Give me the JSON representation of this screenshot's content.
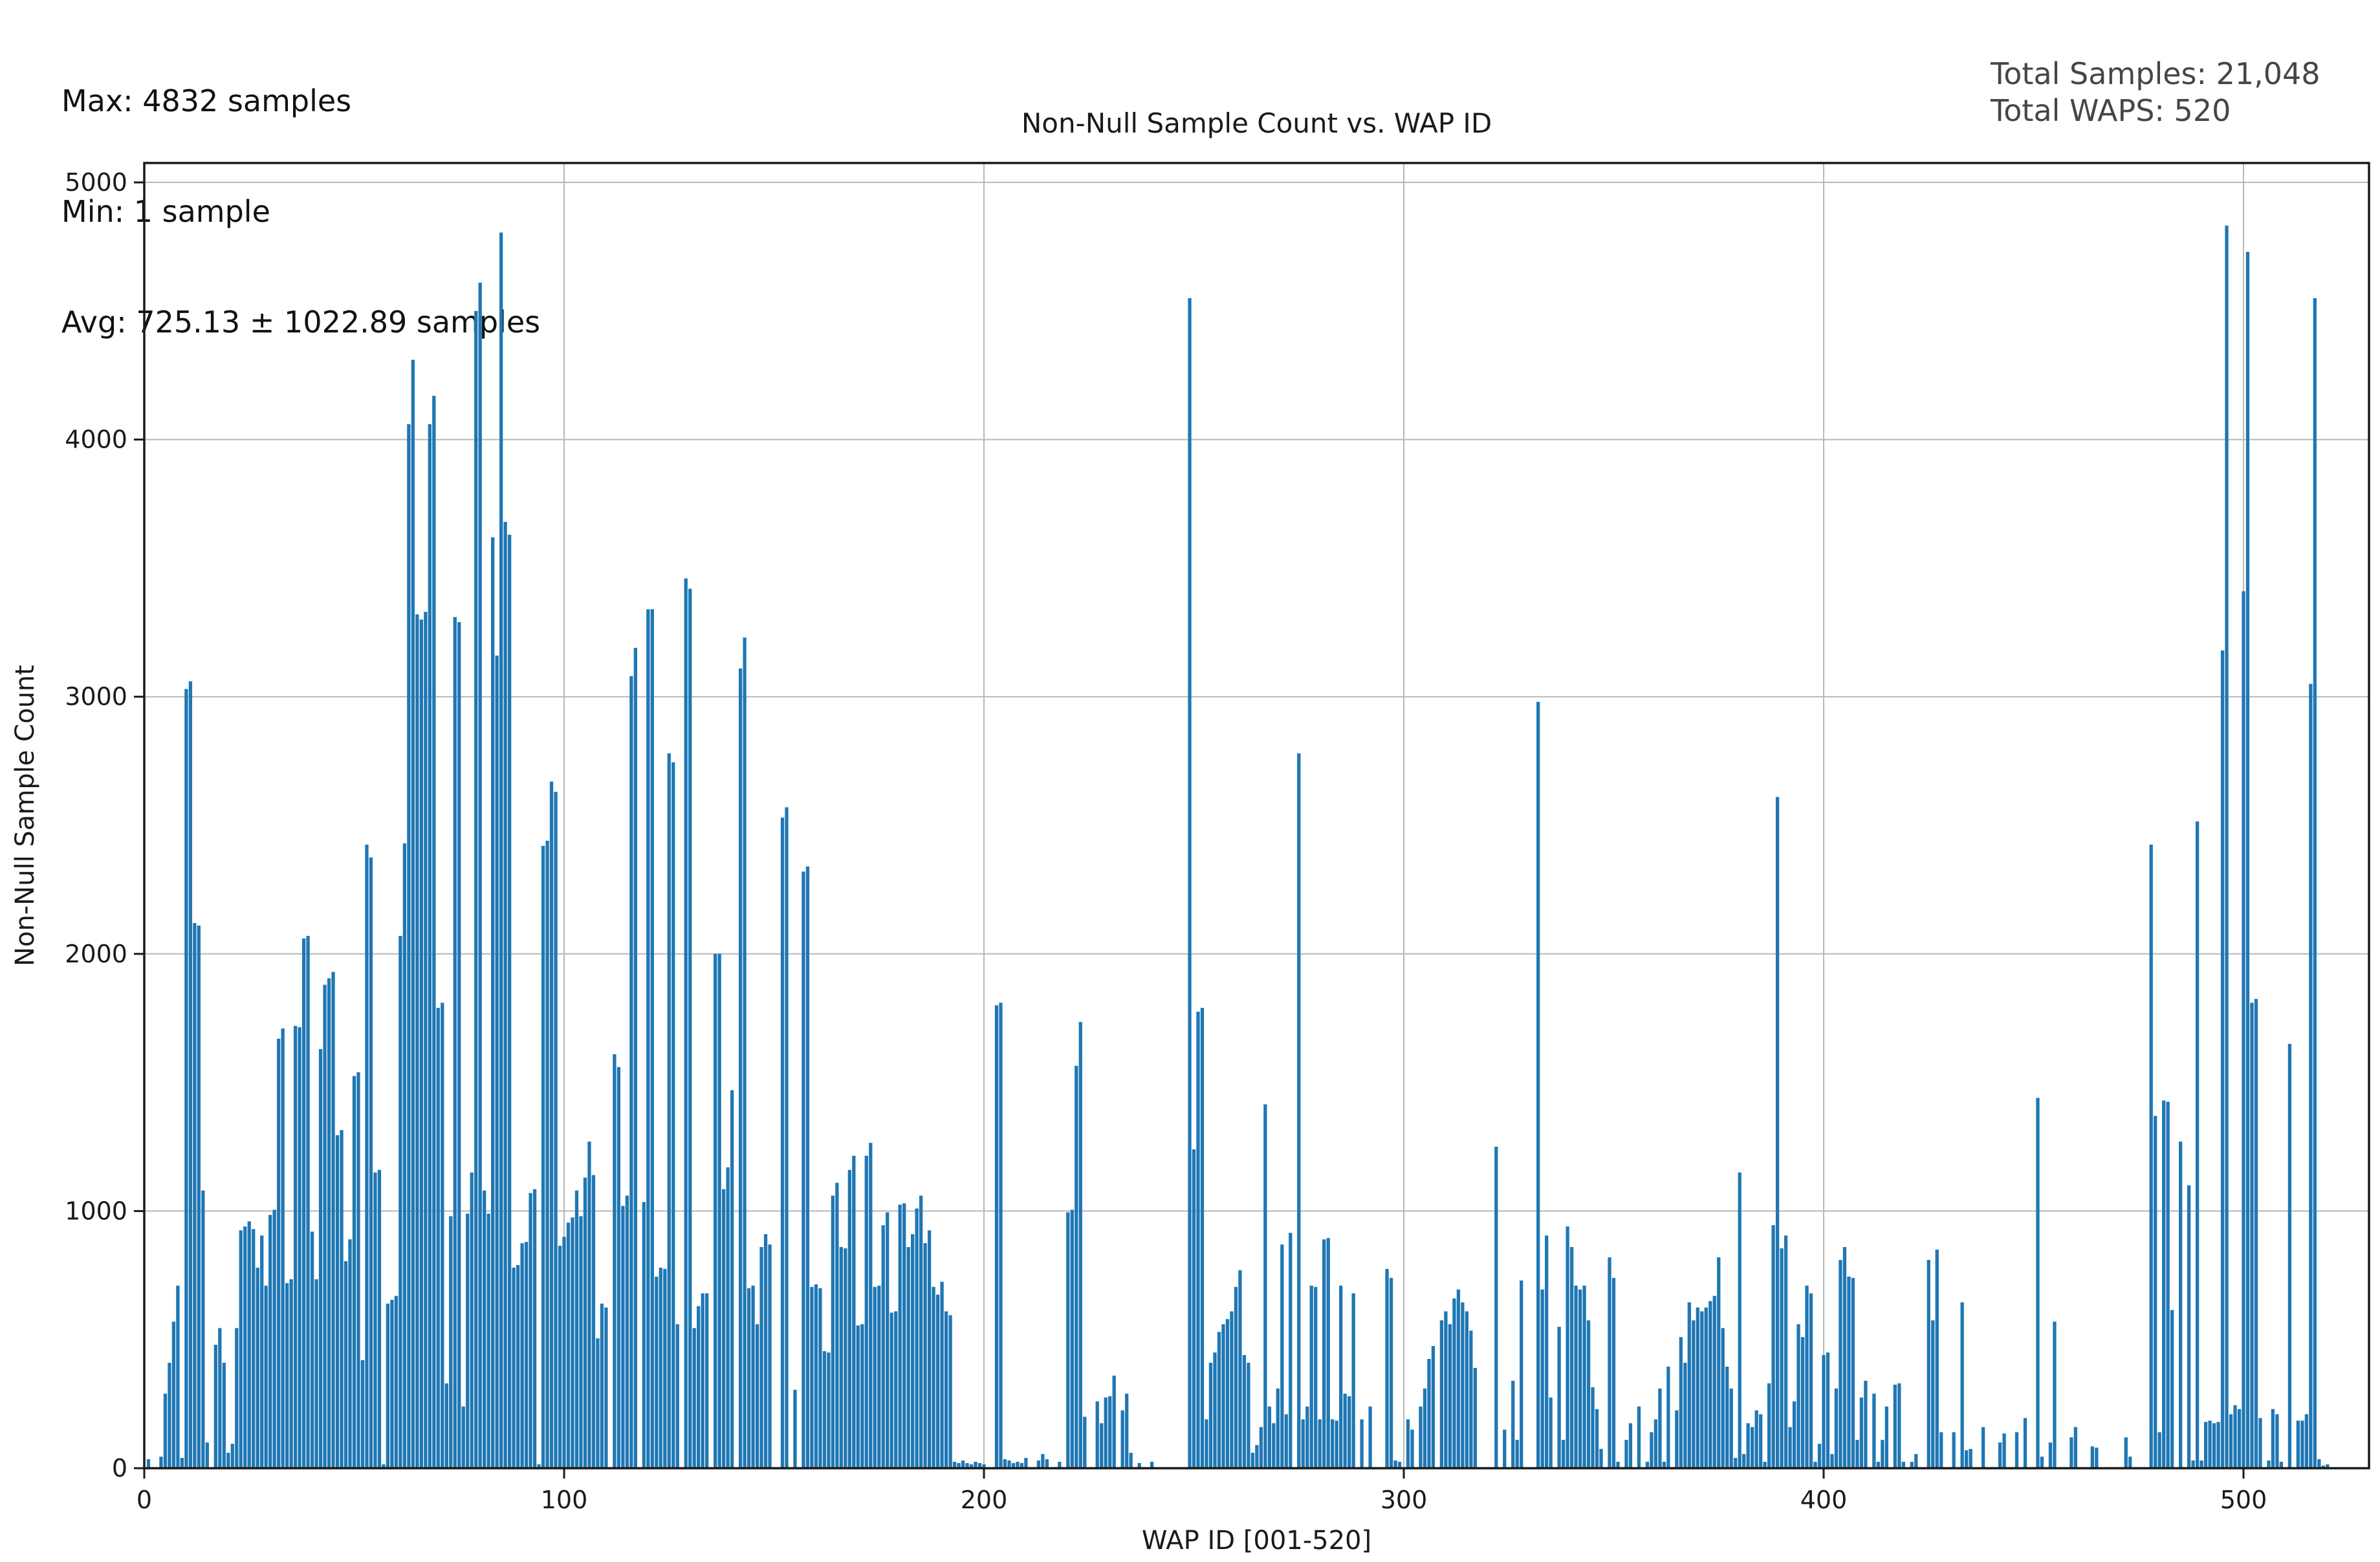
{
  "stats_box": {
    "max": "Max: 4832 samples",
    "min": "Min: 1 sample",
    "avg": "Avg: 725.13 ± 1022.89 samples"
  },
  "totals": {
    "samples": "Total Samples: 21,048",
    "waps": "Total WAPS: 520"
  },
  "chart_data": {
    "type": "bar",
    "title": "Non-Null Sample Count vs. WAP ID",
    "xlabel": "WAP ID [001-520]",
    "ylabel": "Non-Null Sample Count",
    "x_range": [
      1,
      520
    ],
    "xlim": [
      0,
      530
    ],
    "ylim": [
      0,
      5080
    ],
    "x_ticks": [
      0,
      100,
      200,
      300,
      400,
      500
    ],
    "y_ticks": [
      0,
      1000,
      2000,
      3000,
      4000,
      5000
    ],
    "grid": true,
    "bar_color": "#1f77b4",
    "grid_color": "#b8b8b8",
    "axis_color": "#1a1a1a",
    "values": [
      35,
      0,
      0,
      45,
      290,
      410,
      570,
      710,
      40,
      3030,
      3060,
      2120,
      2110,
      1080,
      100,
      0,
      480,
      545,
      410,
      60,
      95,
      545,
      925,
      940,
      960,
      930,
      780,
      905,
      710,
      985,
      1005,
      1670,
      1710,
      720,
      735,
      1720,
      1715,
      2060,
      2070,
      920,
      735,
      1630,
      1880,
      1905,
      1930,
      1295,
      1315,
      805,
      890,
      1525,
      1540,
      420,
      2425,
      2375,
      1150,
      1160,
      15,
      640,
      655,
      670,
      2070,
      2430,
      4060,
      4310,
      3320,
      3300,
      3330,
      4060,
      4170,
      1790,
      1810,
      330,
      980,
      3310,
      3290,
      240,
      990,
      1150,
      4500,
      4610,
      1080,
      990,
      3620,
      3160,
      4805,
      3680,
      3630,
      780,
      790,
      875,
      880,
      1070,
      1085,
      15,
      2420,
      2440,
      2670,
      2630,
      865,
      900,
      955,
      975,
      1080,
      980,
      1130,
      1270,
      1140,
      505,
      640,
      625,
      0,
      1610,
      1560,
      1020,
      1060,
      3080,
      3190,
      0,
      1035,
      3340,
      3340,
      745,
      780,
      775,
      2780,
      2745,
      560,
      0,
      3460,
      3420,
      545,
      630,
      680,
      680,
      0,
      2000,
      2000,
      1085,
      1170,
      1470,
      0,
      3110,
      3230,
      700,
      710,
      560,
      860,
      910,
      870,
      0,
      0,
      2530,
      2570,
      0,
      305,
      0,
      2320,
      2340,
      705,
      715,
      700,
      455,
      450,
      1060,
      1110,
      860,
      855,
      1160,
      1215,
      555,
      560,
      1215,
      1265,
      705,
      710,
      945,
      995,
      605,
      610,
      1025,
      1030,
      860,
      910,
      1010,
      1060,
      875,
      925,
      705,
      675,
      725,
      610,
      595,
      25,
      20,
      30,
      20,
      15,
      25,
      20,
      15,
      0,
      0,
      1800,
      1810,
      35,
      30,
      20,
      25,
      20,
      40,
      0,
      0,
      30,
      55,
      35,
      0,
      0,
      25,
      0,
      995,
      1005,
      1565,
      1735,
      200,
      0,
      0,
      260,
      175,
      275,
      280,
      360,
      0,
      225,
      290,
      60,
      0,
      20,
      0,
      0,
      25,
      0,
      0,
      0,
      0,
      0,
      0,
      0,
      0,
      4550,
      1240,
      1775,
      1790,
      190,
      410,
      450,
      530,
      560,
      580,
      610,
      705,
      770,
      440,
      410,
      60,
      90,
      160,
      1415,
      240,
      175,
      310,
      870,
      210,
      915,
      0,
      2780,
      190,
      240,
      710,
      705,
      190,
      890,
      895,
      190,
      185,
      710,
      290,
      280,
      680,
      0,
      190,
      0,
      240,
      0,
      0,
      0,
      775,
      740,
      30,
      25,
      0,
      190,
      150,
      0,
      240,
      310,
      425,
      475,
      0,
      575,
      610,
      560,
      660,
      695,
      645,
      610,
      535,
      390,
      0,
      0,
      0,
      0,
      1250,
      0,
      150,
      0,
      340,
      110,
      730,
      0,
      0,
      0,
      2980,
      695,
      905,
      275,
      0,
      550,
      110,
      940,
      860,
      710,
      695,
      710,
      575,
      315,
      230,
      75,
      0,
      820,
      740,
      25,
      0,
      110,
      175,
      0,
      240,
      0,
      25,
      140,
      190,
      310,
      25,
      395,
      0,
      225,
      510,
      410,
      645,
      575,
      625,
      610,
      625,
      650,
      670,
      820,
      545,
      395,
      310,
      40,
      1150,
      55,
      175,
      160,
      225,
      210,
      25,
      330,
      945,
      2610,
      855,
      905,
      160,
      260,
      560,
      510,
      710,
      680,
      25,
      95,
      440,
      450,
      55,
      310,
      810,
      860,
      745,
      740,
      110,
      275,
      340,
      0,
      290,
      25,
      110,
      240,
      0,
      325,
      330,
      25,
      0,
      25,
      55,
      0,
      0,
      810,
      575,
      850,
      140,
      0,
      0,
      140,
      0,
      645,
      70,
      75,
      0,
      0,
      160,
      0,
      0,
      0,
      100,
      135,
      0,
      0,
      140,
      0,
      195,
      0,
      0,
      1440,
      45,
      0,
      100,
      570,
      0,
      0,
      0,
      120,
      160,
      0,
      0,
      0,
      85,
      80,
      0,
      0,
      0,
      0,
      0,
      0,
      120,
      45,
      0,
      0,
      0,
      0,
      2425,
      1370,
      140,
      1430,
      1425,
      615,
      0,
      1270,
      0,
      1100,
      30,
      2515,
      30,
      180,
      185,
      175,
      180,
      3180,
      4832,
      210,
      245,
      230,
      3410,
      4730,
      1810,
      1825,
      195,
      0,
      30,
      230,
      210,
      25,
      0,
      1650,
      0,
      185,
      185,
      210,
      3050,
      4550,
      35,
      10,
      15
    ]
  }
}
